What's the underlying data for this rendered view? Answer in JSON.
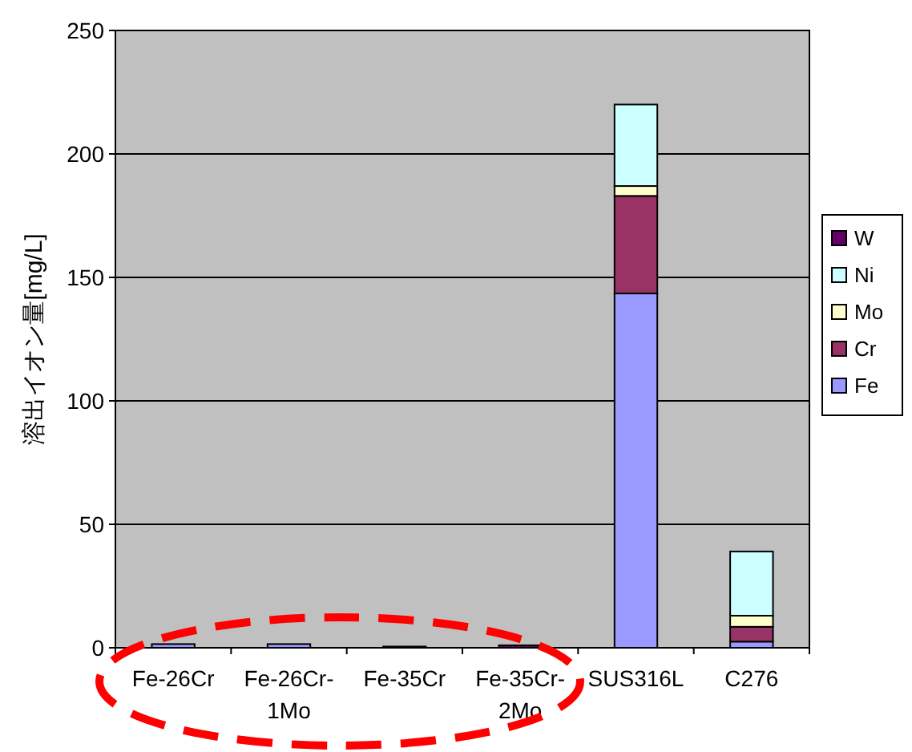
{
  "chart_data": {
    "type": "bar",
    "stacked": true,
    "ylabel": "溶出イオン量[mg/L]",
    "categories": [
      "Fe-26Cr",
      "Fe-26Cr-1Mo",
      "Fe-35Cr",
      "Fe-35Cr-2Mo",
      "SUS316L",
      "C276"
    ],
    "series": [
      {
        "name": "Fe",
        "color": "#9999ff",
        "values": [
          1.5,
          1.5,
          0,
          0,
          143.5,
          2.5
        ]
      },
      {
        "name": "Cr",
        "color": "#993366",
        "values": [
          0,
          0,
          0,
          0,
          39.5,
          6
        ]
      },
      {
        "name": "Mo",
        "color": "#ffffcc",
        "values": [
          0,
          0,
          0,
          0,
          4,
          4.5
        ]
      },
      {
        "name": "Ni",
        "color": "#ccffff",
        "values": [
          0,
          0,
          0,
          0,
          33,
          26
        ]
      },
      {
        "name": "W",
        "color": "#660066",
        "values": [
          0,
          0,
          0.5,
          1,
          0,
          0
        ]
      }
    ],
    "ylim": [
      0,
      250
    ],
    "yticks": [
      0,
      50,
      100,
      150,
      200,
      250
    ],
    "grid": "y",
    "legend": "right"
  }
}
